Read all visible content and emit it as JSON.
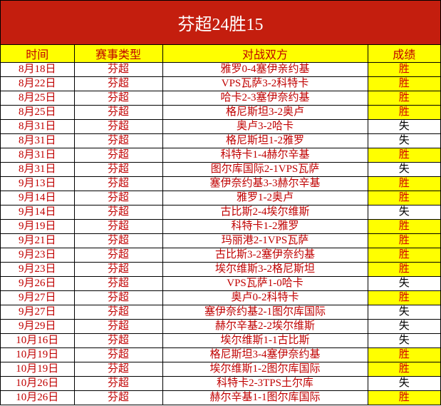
{
  "title": "芬超24胜15",
  "headers": [
    "时间",
    "赛事类型",
    "对战双方",
    "成绩"
  ],
  "colors": {
    "title_bg": "#c41e0e",
    "header_bg": "#ffff00",
    "win_bg": "#ffff00",
    "text_red": "#c00000"
  },
  "rows": [
    {
      "date": "8月18日",
      "league": "芬超",
      "match": "雅罗0-4塞伊亲约基",
      "result": "胜"
    },
    {
      "date": "8月22日",
      "league": "芬超",
      "match": "VPS瓦萨3-2科特卡",
      "result": "胜"
    },
    {
      "date": "8月25日",
      "league": "芬超",
      "match": "哈卡2-3塞伊奈约基",
      "result": "胜"
    },
    {
      "date": "8月25日",
      "league": "芬超",
      "match": "格尼斯坦3-2奥卢",
      "result": "胜"
    },
    {
      "date": "8月31日",
      "league": "芬超",
      "match": "奥卢3-2哈卡",
      "result": "失"
    },
    {
      "date": "8月31日",
      "league": "芬超",
      "match": "格尼斯坦1-2雅罗",
      "result": "失"
    },
    {
      "date": "8月31日",
      "league": "芬超",
      "match": "科特卡1-4赫尔辛基",
      "result": "胜"
    },
    {
      "date": "8月31日",
      "league": "芬超",
      "match": "图尔库国际2-1VPS瓦萨",
      "result": "失"
    },
    {
      "date": "9月13日",
      "league": "芬超",
      "match": "塞伊奈约基3-3赫尔辛基",
      "result": "胜"
    },
    {
      "date": "9月14日",
      "league": "芬超",
      "match": "雅罗1-2奥卢",
      "result": "胜"
    },
    {
      "date": "9月14日",
      "league": "芬超",
      "match": "古比斯2-4埃尔维斯",
      "result": "失"
    },
    {
      "date": "9月19日",
      "league": "芬超",
      "match": "科特卡1-2雅罗",
      "result": "胜"
    },
    {
      "date": "9月21日",
      "league": "芬超",
      "match": "玛丽港2-1VPS瓦萨",
      "result": "胜"
    },
    {
      "date": "9月23日",
      "league": "芬超",
      "match": "古比斯3-2塞伊奈约基",
      "result": "胜"
    },
    {
      "date": "9月23日",
      "league": "芬超",
      "match": "埃尔维斯3-2格尼斯坦",
      "result": "胜"
    },
    {
      "date": "9月26日",
      "league": "芬超",
      "match": "VPS瓦萨1-0哈卡",
      "result": "失"
    },
    {
      "date": "9月27日",
      "league": "芬超",
      "match": "奥卢0-2科特卡",
      "result": "胜"
    },
    {
      "date": "9月27日",
      "league": "芬超",
      "match": "塞伊奈约基2-1图尔库国际",
      "result": "失"
    },
    {
      "date": "9月29日",
      "league": "芬超",
      "match": "赫尔辛基2-2埃尔维斯",
      "result": "失"
    },
    {
      "date": "10月16日",
      "league": "芬超",
      "match": "埃尔维斯1-1古比斯",
      "result": "失"
    },
    {
      "date": "10月19日",
      "league": "芬超",
      "match": "格尼斯坦3-4塞伊奈约基",
      "result": "胜"
    },
    {
      "date": "10月19日",
      "league": "芬超",
      "match": "埃尔维斯1-2图尔库国际",
      "result": "胜"
    },
    {
      "date": "10月26日",
      "league": "芬超",
      "match": "科特卡2-3TPS土尔库",
      "result": "失"
    },
    {
      "date": "10月26日",
      "league": "芬超",
      "match": "赫尔辛基1-1图尔库国际",
      "result": "胜"
    }
  ]
}
